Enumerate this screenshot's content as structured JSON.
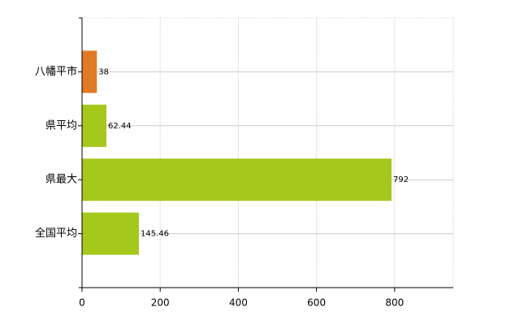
{
  "chart_data": {
    "type": "bar",
    "orientation": "horizontal",
    "categories": [
      "八幡平市",
      "県平均",
      "県最大",
      "全国平均"
    ],
    "values": [
      38,
      62.44,
      792,
      145.46
    ],
    "colors": [
      "#e07a24",
      "#a5c81c",
      "#a5c81c",
      "#a5c81c"
    ],
    "xlim": [
      0,
      950
    ],
    "xticks": [
      0,
      200,
      400,
      600,
      800
    ],
    "grid": true
  }
}
